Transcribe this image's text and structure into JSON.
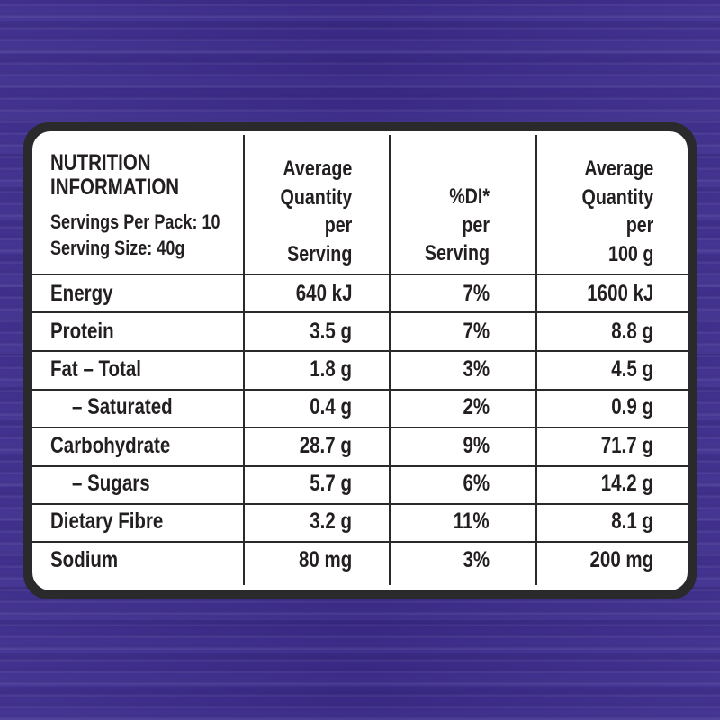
{
  "header": {
    "title_line1": "NUTRITION",
    "title_line2": "INFORMATION",
    "servings_per_pack": "Servings Per Pack: 10",
    "serving_size": "Serving Size: 40g",
    "col1": [
      "Average",
      "Quantity",
      "per",
      "Serving"
    ],
    "col2": [
      "%DI*",
      "per",
      "Serving"
    ],
    "col3": [
      "Average",
      "Quantity",
      "per",
      "100 g"
    ]
  },
  "rows": [
    {
      "label": "Energy",
      "per_serving": "640 kJ",
      "di": "7%",
      "per_100g": "1600 kJ",
      "indent": false
    },
    {
      "label": "Protein",
      "per_serving": "3.5 g",
      "di": "7%",
      "per_100g": "8.8 g",
      "indent": false
    },
    {
      "label": "Fat – Total",
      "per_serving": "1.8 g",
      "di": "3%",
      "per_100g": "4.5 g",
      "indent": false
    },
    {
      "label": "– Saturated",
      "per_serving": "0.4 g",
      "di": "2%",
      "per_100g": "0.9 g",
      "indent": true
    },
    {
      "label": "Carbohydrate",
      "per_serving": "28.7 g",
      "di": "9%",
      "per_100g": "71.7 g",
      "indent": false
    },
    {
      "label": "– Sugars",
      "per_serving": "5.7 g",
      "di": "6%",
      "per_100g": "14.2 g",
      "indent": true
    },
    {
      "label": "Dietary Fibre",
      "per_serving": "3.2 g",
      "di": "11%",
      "per_100g": "8.1 g",
      "indent": false
    },
    {
      "label": "Sodium",
      "per_serving": "80 mg",
      "di": "3%",
      "per_100g": "200 mg",
      "indent": false
    }
  ],
  "colors": {
    "background": "#3d2c8d",
    "border": "#2a2a2c",
    "card": "#ffffff",
    "text": "#231f20"
  }
}
